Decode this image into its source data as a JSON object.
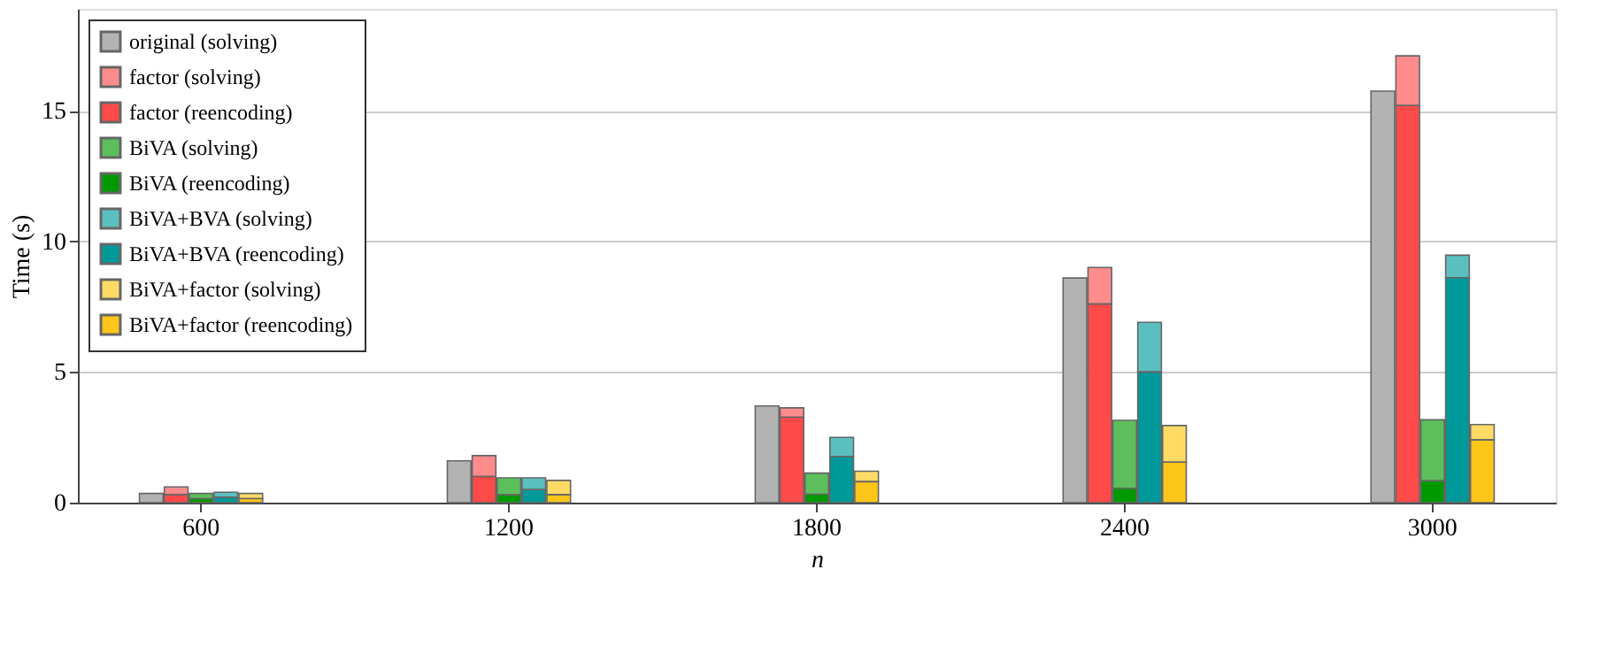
{
  "chart_data": {
    "type": "bar",
    "xlabel": "n",
    "ylabel": "Time (s)",
    "categories": [
      "600",
      "1200",
      "1800",
      "2400",
      "3000"
    ],
    "ylim": [
      0,
      18.9
    ],
    "yticks": [
      0,
      5,
      10,
      15
    ],
    "grid": "y",
    "legend": "top left",
    "series": [
      {
        "name": "original (solving)",
        "color": "#b3b3b3",
        "values": [
          0.35,
          1.6,
          3.7,
          8.6,
          15.75
        ]
      },
      {
        "name": "factor (solving)",
        "color": "#ff8c8c",
        "values": [
          0.3,
          0.8,
          0.36,
          1.4,
          1.9
        ],
        "base": [
          0.3,
          1.0,
          3.27,
          7.6,
          15.2
        ]
      },
      {
        "name": "factor (reencoding)",
        "color": "#ff4a4a",
        "values": [
          0.3,
          1.0,
          3.27,
          7.6,
          15.2
        ]
      },
      {
        "name": "BiVA (solving)",
        "color": "#5cbf5c",
        "values": [
          0.2,
          0.65,
          0.81,
          2.6,
          2.33
        ],
        "base": [
          0.15,
          0.3,
          0.32,
          0.55,
          0.84
        ]
      },
      {
        "name": "BiVA (reencoding)",
        "color": "#009900",
        "values": [
          0.15,
          0.3,
          0.32,
          0.55,
          0.84
        ]
      },
      {
        "name": "BiVA+BVA (solving)",
        "color": "#5cbfbf",
        "values": [
          0.2,
          0.45,
          0.74,
          1.9,
          0.86
        ],
        "base": [
          0.2,
          0.5,
          1.76,
          5.0,
          8.61
        ]
      },
      {
        "name": "BiVA+BVA (reencoding)",
        "color": "#009999",
        "values": [
          0.2,
          0.5,
          1.76,
          5.0,
          8.61
        ]
      },
      {
        "name": "BiVA+factor (solving)",
        "color": "#ffdb66",
        "values": [
          0.2,
          0.55,
          0.4,
          1.4,
          0.59
        ],
        "base": [
          0.15,
          0.3,
          0.8,
          1.55,
          2.4
        ]
      },
      {
        "name": "BiVA+factor (reencoding)",
        "color": "#ffc61a",
        "values": [
          0.15,
          0.3,
          0.8,
          1.55,
          2.4
        ]
      }
    ]
  }
}
